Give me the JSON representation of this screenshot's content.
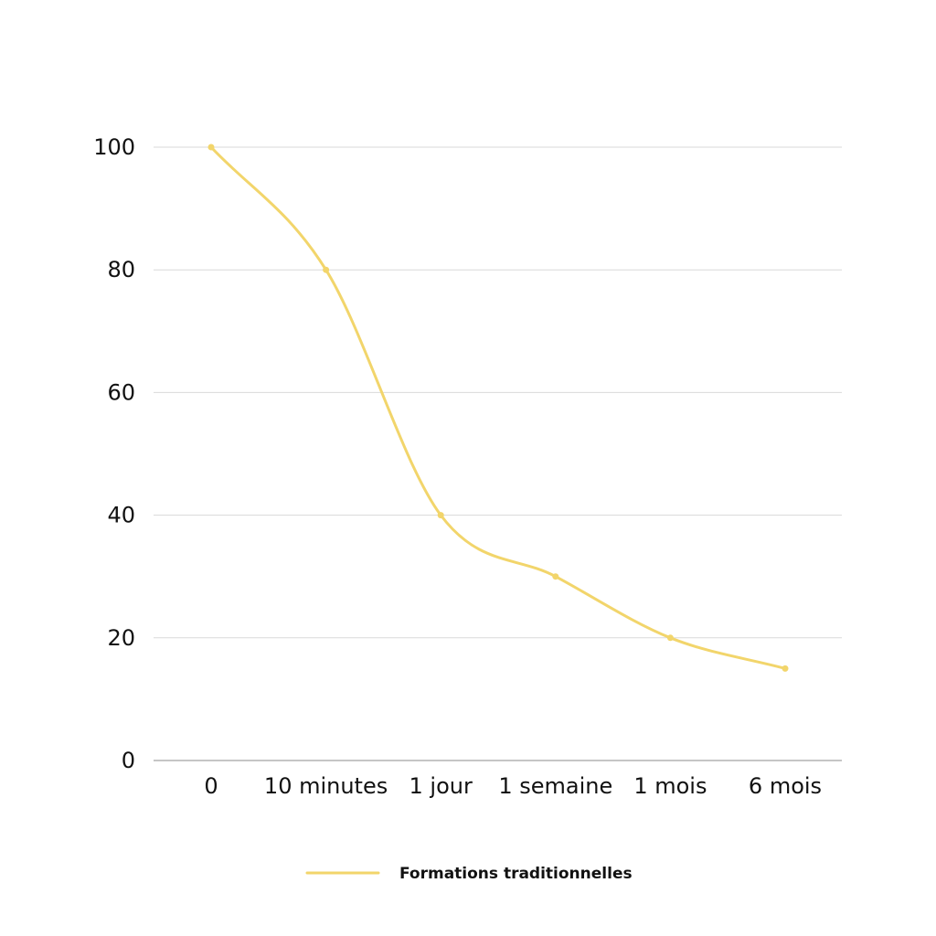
{
  "chart_data": {
    "type": "line",
    "title": "",
    "xlabel": "",
    "ylabel": "",
    "categories": [
      "0",
      "10 minutes",
      "1 jour",
      "1 semaine",
      "1 mois",
      "6 mois"
    ],
    "series": [
      {
        "name": "Formations traditionnelles",
        "values": [
          100,
          80,
          40,
          30,
          20,
          15
        ],
        "color": "#f2d56b"
      }
    ],
    "y_ticks": [
      "0",
      "20",
      "40",
      "60",
      "80",
      "100"
    ],
    "ylim": [
      0,
      100
    ],
    "grid": true,
    "smooth": true,
    "legend_position": "bottom"
  }
}
